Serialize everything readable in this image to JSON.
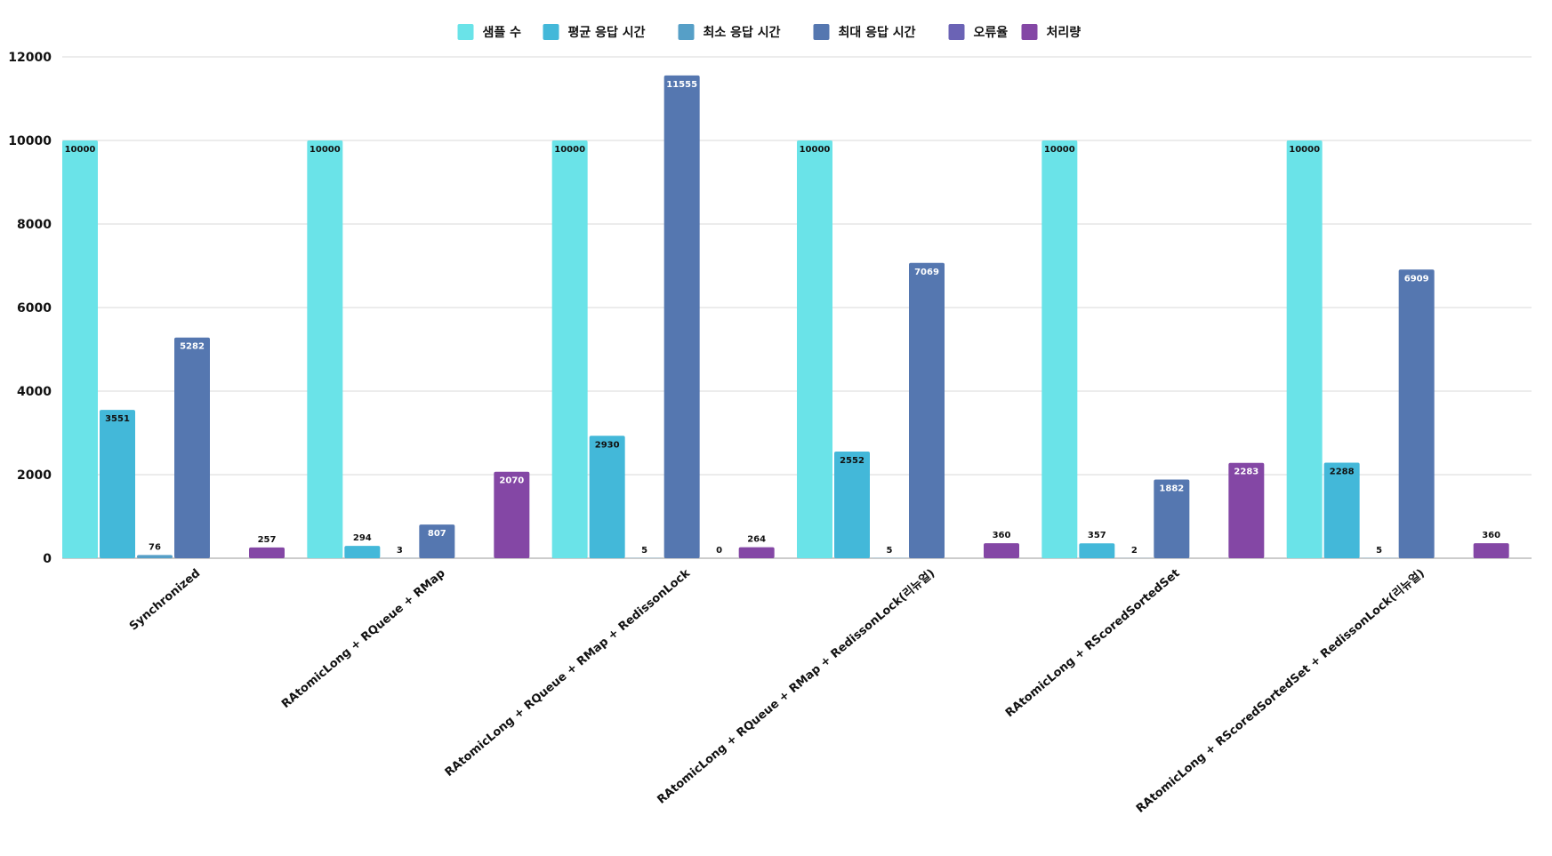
{
  "chart_data": {
    "type": "bar",
    "title": "",
    "xlabel": "",
    "ylabel": "",
    "ylim": [
      0,
      12000
    ],
    "yticks": [
      0,
      2000,
      4000,
      6000,
      8000,
      10000,
      12000
    ],
    "grid": true,
    "legend_position": "top-center",
    "categories": [
      "Synchronized",
      "RAtomicLong + RQueue + RMap",
      "RAtomicLong + RQueue + RMap + RedissonLock",
      "RAtomicLong + RQueue + RMap + RedissonLock(리뉴얼)",
      "RAtomicLong + RScoredSortedSet",
      "RAtomicLong + RScoredSortedSet + RedissonLock(리뉴얼)"
    ],
    "series": [
      {
        "name": "샘플 수",
        "color": "#6ae3e8",
        "values": [
          10000,
          10000,
          10000,
          10000,
          10000,
          10000
        ]
      },
      {
        "name": "평균 응답 시간",
        "color": "#43b8d9",
        "values": [
          3551,
          294,
          2930,
          2552,
          357,
          2288
        ]
      },
      {
        "name": "최소 응답 시간",
        "color": "#569fc7",
        "values": [
          76,
          3,
          5,
          5,
          2,
          5
        ]
      },
      {
        "name": "최대 응답 시간",
        "color": "#5577b0",
        "values": [
          5282,
          807,
          11555,
          7069,
          1882,
          6909
        ]
      },
      {
        "name": "오류율",
        "color": "#6b63b5",
        "values": [
          0,
          0,
          0,
          0,
          0,
          0
        ]
      },
      {
        "name": "처리량",
        "color": "#8447a5",
        "values": [
          257,
          2070,
          264,
          360,
          2283,
          360
        ]
      }
    ],
    "value_labels": [
      [
        "10000",
        "3551",
        "76",
        "5282",
        "",
        "257"
      ],
      [
        "10000",
        "294",
        "3",
        "807",
        "",
        "2070"
      ],
      [
        "10000",
        "2930",
        "5",
        "11555",
        "0",
        "264"
      ],
      [
        "10000",
        "2552",
        "5",
        "7069",
        "",
        "360"
      ],
      [
        "10000",
        "357",
        "2",
        "1882",
        "",
        "2283"
      ],
      [
        "10000",
        "2288",
        "5",
        "6909",
        "",
        "360"
      ]
    ]
  }
}
